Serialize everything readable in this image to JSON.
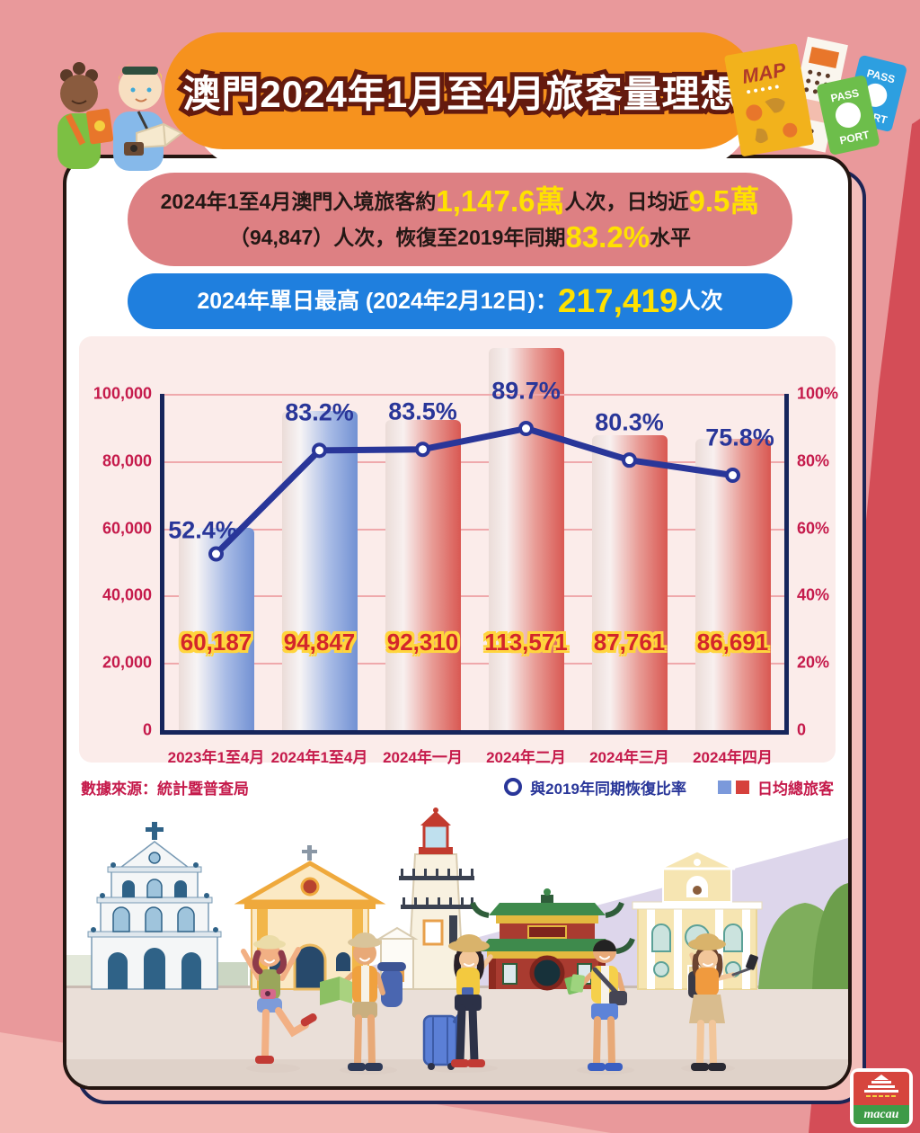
{
  "title": "澳門2024年1月至4月旅客量理想",
  "summary_banner": {
    "line1": [
      {
        "t": "2024年1至4月澳門入境旅客約",
        "c": "dark"
      },
      {
        "t": "1,147.6萬",
        "c": "yellow"
      },
      {
        "t": "人次，日均近",
        "c": "dark"
      },
      {
        "t": "9.5萬",
        "c": "yellow"
      }
    ],
    "line2": [
      {
        "t": "（94,847）人次，恢復至2019年同期",
        "c": "dark"
      },
      {
        "t": "83.2%",
        "c": "yellow"
      },
      {
        "t": "水平",
        "c": "dark"
      }
    ]
  },
  "peak_banner": {
    "segments": [
      {
        "t": "2024年單日最高 (2024年2月12日)：",
        "c": "white"
      },
      {
        "t": "217,419",
        "c": "yellow"
      },
      {
        "t": "人次",
        "c": "white"
      }
    ]
  },
  "chart_data": {
    "type": "bar+line",
    "categories": [
      "2023年1至4月",
      "2024年1至4月",
      "2024年一月",
      "2024年二月",
      "2024年三月",
      "2024年四月"
    ],
    "series": [
      {
        "name": "日均總旅客",
        "type": "bar",
        "values": [
          60187,
          94847,
          92310,
          113571,
          87761,
          86691
        ],
        "bar_colors": [
          "blue",
          "blue",
          "red",
          "red",
          "red",
          "red"
        ]
      },
      {
        "name": "與2019年同期恢復比率",
        "type": "line",
        "unit": "%",
        "values": [
          52.4,
          83.2,
          83.5,
          89.7,
          80.3,
          75.8
        ]
      }
    ],
    "left_axis": {
      "max": 100000,
      "ticks": [
        "100,000",
        "80,000",
        "60,000",
        "40,000",
        "20,000",
        "0"
      ]
    },
    "right_axis": {
      "max": 100,
      "ticks": [
        "100%",
        "80%",
        "60%",
        "40%",
        "20%",
        "0"
      ]
    },
    "grid": true,
    "legend_position": "bottom-right",
    "colors": {
      "bar_blue": "#7291D3",
      "bar_red": "#D95852",
      "line": "#293699",
      "axis_text": "#C51A4B",
      "value_text": "#D3262B",
      "value_outline": "#FFD53D",
      "grid_line": "#EFA9AC",
      "frame": "#16255B"
    }
  },
  "footer": {
    "source": "數據來源：統計暨普查局",
    "legend_line_label": "與2019年同期恢復比率",
    "legend_bar_label": "日均總旅客"
  },
  "decor": {
    "map_label": "MAP",
    "passport_green_top": "PASS",
    "passport_green_bottom": "PORT",
    "passport_blue_top": "PASS",
    "passport_blue_bottom": "PORT"
  },
  "logo": {
    "brand": "macau"
  },
  "palette": {
    "background": "#E9999B",
    "background_dark": "#D44D57",
    "background_light": "#F3B8B4",
    "title_banner": "#F6921E",
    "summary_banner": "#DD8083",
    "peak_banner": "#1F7FDE",
    "highlight_yellow": "#FFE100",
    "chart_panel": "#FBECEA"
  }
}
